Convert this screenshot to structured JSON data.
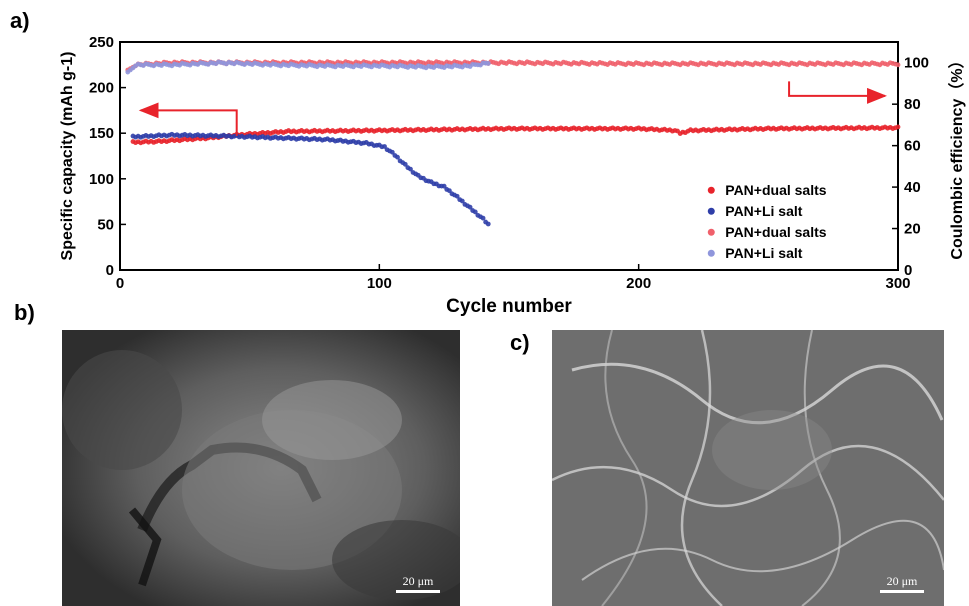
{
  "panels": {
    "a": "a)",
    "b": "b)",
    "c": "c)"
  },
  "sem_images": {
    "b": {
      "scale_bar": "20 μm"
    },
    "c": {
      "scale_bar": "20 μm"
    }
  },
  "chart_data": {
    "type": "scatter",
    "xlabel": "Cycle number",
    "ylabel_left": "Specific capacity (mAh g-1)",
    "ylabel_right": "Coulombic efficiency（%）",
    "xlim": [
      0,
      300
    ],
    "ylim_left": [
      0,
      250
    ],
    "ylim_right": [
      0,
      110
    ],
    "x_ticks": [
      0,
      100,
      200,
      300
    ],
    "y_left_ticks": [
      0,
      50,
      100,
      150,
      200,
      250
    ],
    "y_right_ticks": [
      0,
      20,
      40,
      60,
      80,
      100
    ],
    "legend_position": "center-right",
    "grid": false,
    "series": [
      {
        "name": "PAN+dual salts",
        "axis": "left",
        "color": "#e8232b",
        "points": [
          [
            5,
            140
          ],
          [
            15,
            141
          ],
          [
            25,
            143
          ],
          [
            35,
            145
          ],
          [
            45,
            148
          ],
          [
            55,
            150
          ],
          [
            65,
            152
          ],
          [
            100,
            153
          ],
          [
            150,
            155
          ],
          [
            200,
            155
          ],
          [
            214,
            153
          ],
          [
            216,
            150
          ],
          [
            220,
            153
          ],
          [
            250,
            155
          ],
          [
            300,
            156
          ]
        ]
      },
      {
        "name": "PAN+Li salt",
        "axis": "left",
        "color": "#2f3ea8",
        "points": [
          [
            5,
            146
          ],
          [
            20,
            148
          ],
          [
            40,
            147
          ],
          [
            60,
            145
          ],
          [
            80,
            143
          ],
          [
            95,
            139
          ],
          [
            102,
            135
          ],
          [
            106,
            126
          ],
          [
            110,
            115
          ],
          [
            115,
            103
          ],
          [
            120,
            96
          ],
          [
            125,
            91
          ],
          [
            130,
            80
          ],
          [
            135,
            68
          ],
          [
            140,
            56
          ],
          [
            142,
            50
          ]
        ]
      },
      {
        "name": "PAN+dual salts",
        "axis": "right",
        "color": "#f0606b",
        "points": [
          [
            3,
            96
          ],
          [
            6,
            99
          ],
          [
            20,
            100
          ],
          [
            50,
            100
          ],
          [
            100,
            100
          ],
          [
            150,
            100
          ],
          [
            200,
            99.5
          ],
          [
            250,
            99.5
          ],
          [
            300,
            99.5
          ]
        ]
      },
      {
        "name": "PAN+Li salt",
        "axis": "right",
        "color": "#8f96dc",
        "points": [
          [
            3,
            95
          ],
          [
            6,
            99
          ],
          [
            20,
            99
          ],
          [
            40,
            100
          ],
          [
            60,
            99
          ],
          [
            80,
            98.5
          ],
          [
            100,
            98.5
          ],
          [
            120,
            98
          ],
          [
            135,
            98.5
          ],
          [
            142,
            100
          ]
        ]
      }
    ]
  }
}
